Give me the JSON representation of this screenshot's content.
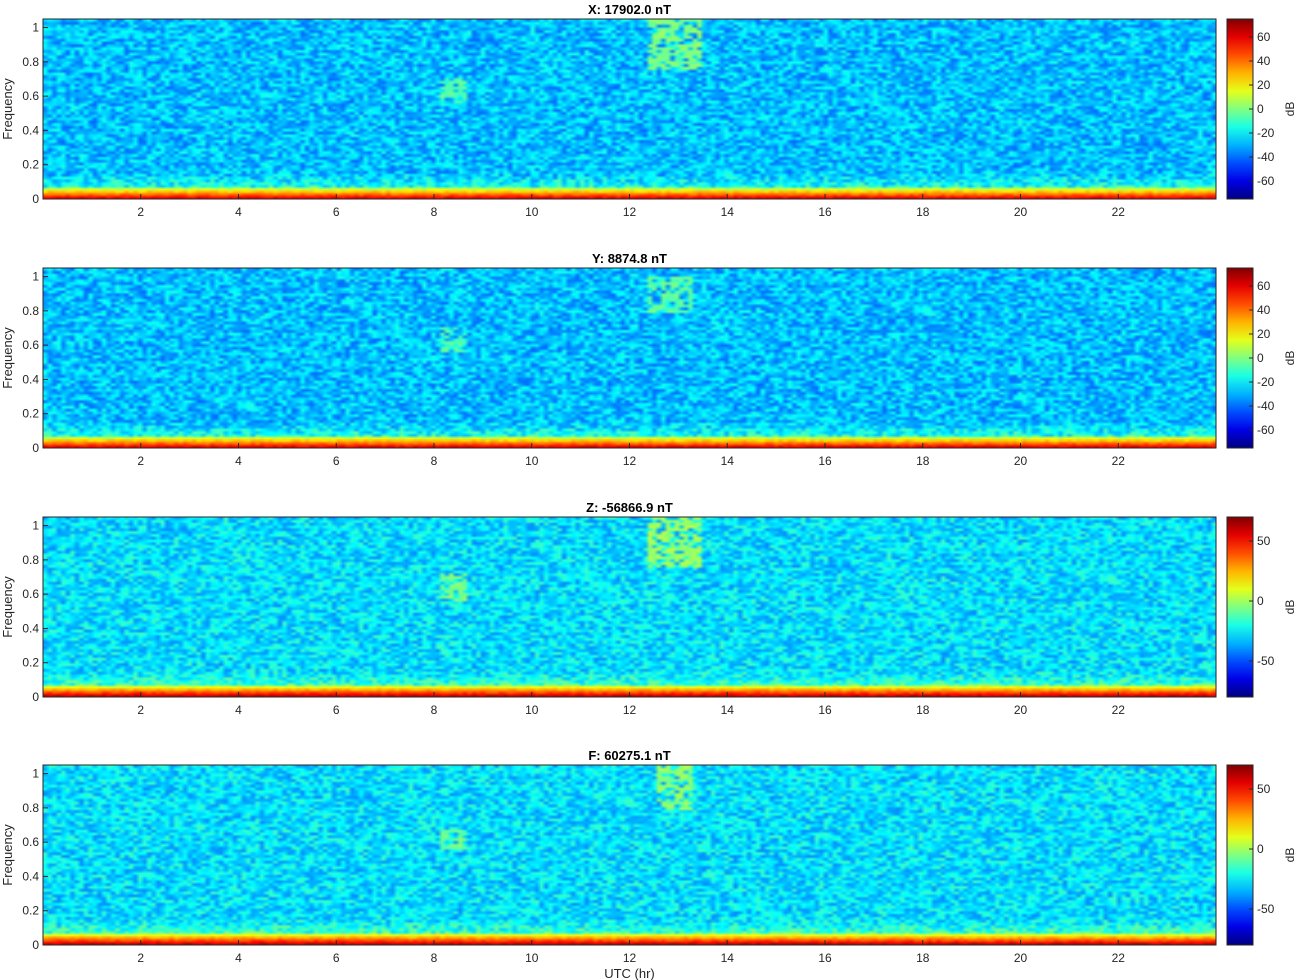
{
  "chart_data": [
    {
      "type": "heatmap",
      "title": "X: 17902.0 nT",
      "ylabel": "Frequency",
      "xlabel": "",
      "xlim": [
        0,
        24
      ],
      "ylim": [
        0,
        1.05
      ],
      "xticks": [
        2,
        4,
        6,
        8,
        10,
        12,
        14,
        16,
        18,
        20,
        22
      ],
      "yticks": [
        0,
        0.2,
        0.4,
        0.6,
        0.8,
        1
      ],
      "ytick_labels": [
        "0",
        "0.2",
        "0.4",
        "0.6",
        "0.8",
        "1"
      ],
      "colorbar": {
        "label": "dB",
        "range": [
          -75,
          75
        ],
        "ticks": [
          -60,
          -40,
          -20,
          0,
          20,
          40,
          60
        ],
        "colormap": "jet"
      },
      "features": [
        {
          "x": [
            8.1,
            8.7
          ],
          "y": [
            0.55,
            0.7
          ],
          "description_db": -5
        },
        {
          "x": [
            12.4,
            13.5
          ],
          "y": [
            0.75,
            1.05
          ],
          "description_db": 0
        }
      ]
    },
    {
      "type": "heatmap",
      "title": "Y: 8874.8 nT",
      "ylabel": "Frequency",
      "xlabel": "",
      "xlim": [
        0,
        24
      ],
      "ylim": [
        0,
        1.05
      ],
      "xticks": [
        2,
        4,
        6,
        8,
        10,
        12,
        14,
        16,
        18,
        20,
        22
      ],
      "yticks": [
        0,
        0.2,
        0.4,
        0.6,
        0.8,
        1
      ],
      "ytick_labels": [
        "0",
        "0.2",
        "0.4",
        "0.6",
        "0.8",
        "1"
      ],
      "colorbar": {
        "label": "dB",
        "range": [
          -75,
          75
        ],
        "ticks": [
          -60,
          -40,
          -20,
          0,
          20,
          40,
          60
        ],
        "colormap": "jet"
      },
      "features": [
        {
          "x": [
            8.1,
            8.7
          ],
          "y": [
            0.55,
            0.7
          ],
          "description_db": -8
        },
        {
          "x": [
            12.4,
            13.3
          ],
          "y": [
            0.78,
            1.0
          ],
          "description_db": -5
        }
      ]
    },
    {
      "type": "heatmap",
      "title": "Z: -56866.9 nT",
      "ylabel": "Frequency",
      "xlabel": "",
      "xlim": [
        0,
        24
      ],
      "ylim": [
        0,
        1.05
      ],
      "xticks": [
        2,
        4,
        6,
        8,
        10,
        12,
        14,
        16,
        18,
        20,
        22
      ],
      "yticks": [
        0,
        0.2,
        0.4,
        0.6,
        0.8,
        1
      ],
      "ytick_labels": [
        "0",
        "0.2",
        "0.4",
        "0.6",
        "0.8",
        "1"
      ],
      "colorbar": {
        "label": "dB",
        "range": [
          -80,
          70
        ],
        "ticks": [
          -50,
          0,
          50
        ],
        "colormap": "jet"
      },
      "features": [
        {
          "x": [
            8.1,
            8.7
          ],
          "y": [
            0.55,
            0.72
          ],
          "description_db": -5
        },
        {
          "x": [
            12.4,
            13.5
          ],
          "y": [
            0.75,
            1.05
          ],
          "description_db": 0
        }
      ]
    },
    {
      "type": "heatmap",
      "title": "F: 60275.1 nT",
      "ylabel": "Frequency",
      "xlabel": "UTC (hr)",
      "xlim": [
        0,
        24
      ],
      "ylim": [
        0,
        1.05
      ],
      "xticks": [
        2,
        4,
        6,
        8,
        10,
        12,
        14,
        16,
        18,
        20,
        22
      ],
      "yticks": [
        0,
        0.2,
        0.4,
        0.6,
        0.8,
        1
      ],
      "ytick_labels": [
        "0",
        "0.2",
        "0.4",
        "0.6",
        "0.8",
        "1"
      ],
      "colorbar": {
        "label": "dB",
        "range": [
          -80,
          70
        ],
        "ticks": [
          -50,
          0,
          50
        ],
        "colormap": "jet"
      },
      "features": [
        {
          "x": [
            8.1,
            8.7
          ],
          "y": [
            0.55,
            0.68
          ],
          "description_db": -8
        },
        {
          "x": [
            12.6,
            13.3
          ],
          "y": [
            0.78,
            1.05
          ],
          "description_db": -3
        }
      ]
    }
  ]
}
